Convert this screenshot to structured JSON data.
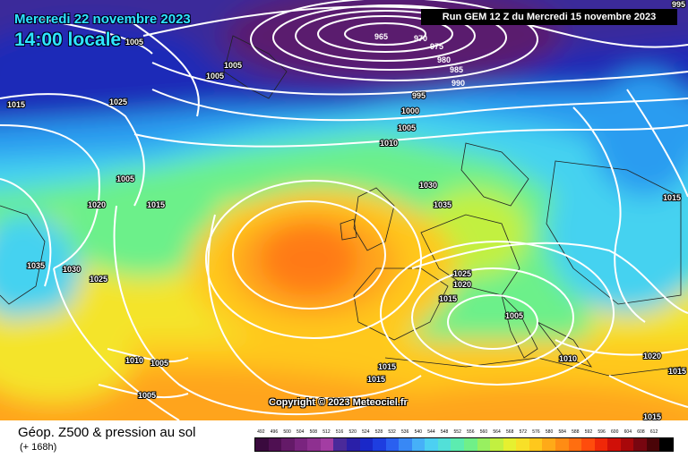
{
  "header": {
    "date": "Mercredi 22 novembre 2023",
    "time": "14:00 locale",
    "run": "Run GEM 12 Z du Mercredi 15 novembre 2023"
  },
  "copyright": "Copyright © 2023 Meteociel.fr",
  "legend": {
    "title": "Géop. Z500 & pression au sol",
    "subtitle": "(+ 168h)",
    "scale": [
      {
        "v": "492",
        "c": "#3a0a3e"
      },
      {
        "v": "496",
        "c": "#4f1052"
      },
      {
        "v": "500",
        "c": "#641a68"
      },
      {
        "v": "504",
        "c": "#7a247f"
      },
      {
        "v": "508",
        "c": "#8e3090"
      },
      {
        "v": "512",
        "c": "#a33da3"
      },
      {
        "v": "516",
        "c": "#4a2a9a"
      },
      {
        "v": "520",
        "c": "#2a1fa8"
      },
      {
        "v": "524",
        "c": "#1a28c8"
      },
      {
        "v": "528",
        "c": "#1e3ee0"
      },
      {
        "v": "532",
        "c": "#2a60f0"
      },
      {
        "v": "536",
        "c": "#3888f5"
      },
      {
        "v": "540",
        "c": "#46b0f8"
      },
      {
        "v": "544",
        "c": "#4cd0f2"
      },
      {
        "v": "548",
        "c": "#52e0d8"
      },
      {
        "v": "552",
        "c": "#5cecb0"
      },
      {
        "v": "556",
        "c": "#70f088"
      },
      {
        "v": "560",
        "c": "#98f060"
      },
      {
        "v": "564",
        "c": "#c2f040"
      },
      {
        "v": "568",
        "c": "#e6f030"
      },
      {
        "v": "572",
        "c": "#f8e028"
      },
      {
        "v": "576",
        "c": "#ffc81c"
      },
      {
        "v": "580",
        "c": "#ffaa18"
      },
      {
        "v": "584",
        "c": "#ff8c14"
      },
      {
        "v": "588",
        "c": "#ff6e10"
      },
      {
        "v": "592",
        "c": "#ff4c0c"
      },
      {
        "v": "596",
        "c": "#f02808"
      },
      {
        "v": "600",
        "c": "#d01008"
      },
      {
        "v": "604",
        "c": "#a8080a"
      },
      {
        "v": "608",
        "c": "#780610"
      },
      {
        "v": "612",
        "c": "#4a0408"
      },
      {
        "v": "",
        "c": "#000000"
      }
    ]
  },
  "isobars": [
    "965",
    "970",
    "975",
    "980",
    "985",
    "990",
    "995",
    "995",
    "1000",
    "1005",
    "1005",
    "1005",
    "1010",
    "1015",
    "1025",
    "1005",
    "1005",
    "1020",
    "1015",
    "1030",
    "1035",
    "1025",
    "1020",
    "1015",
    "1005",
    "1015",
    "1035",
    "1030",
    "1025",
    "1010",
    "1005",
    "1005",
    "1015",
    "1015",
    "1010",
    "1020",
    "1015",
    "1015"
  ],
  "map_colors": {
    "purple": "#5a1a6e",
    "deep_blue": "#1a2ab8",
    "blue": "#2a6cf0",
    "cyan": "#45d2f0",
    "green": "#6cf08a",
    "yellow": "#f4e42c",
    "orange": "#ffa41c",
    "red_orange": "#ff5a12"
  }
}
